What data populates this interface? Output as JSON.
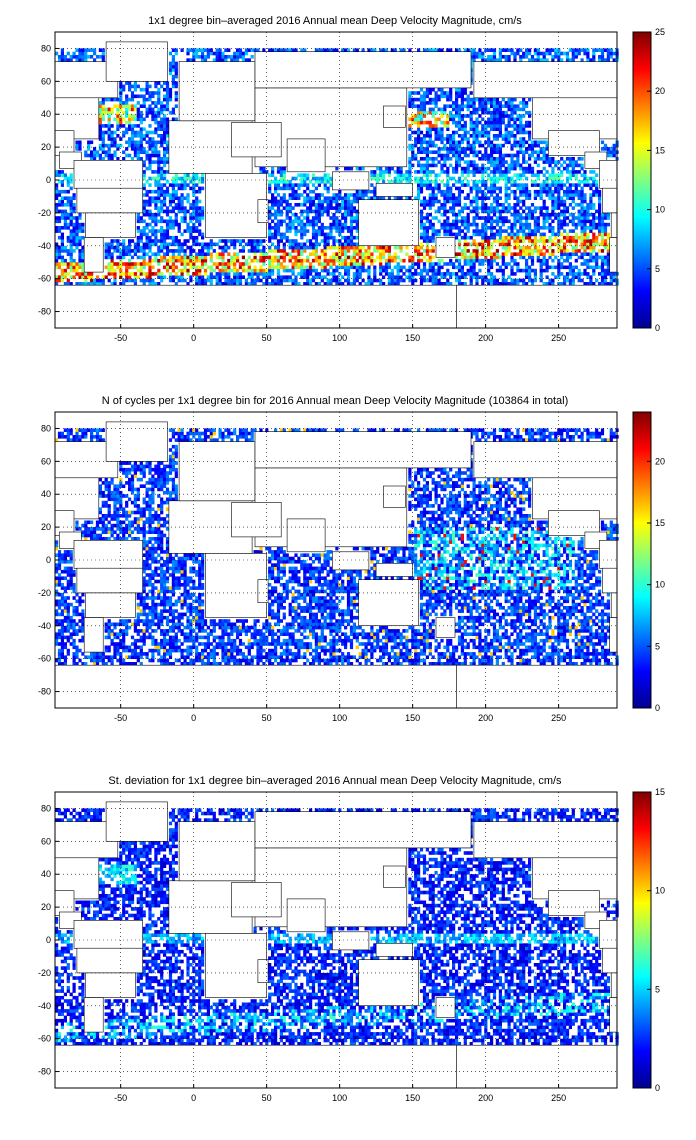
{
  "figure": {
    "panels": [
      {
        "id": "mean",
        "title": "1x1 degree bin–averaged 2016 Annual mean Deep Velocity Magnitude, cm/s",
        "colorbar": {
          "min": 0,
          "max": 25,
          "ticks": [
            0,
            5,
            10,
            15,
            20,
            25
          ]
        },
        "pattern": "mean"
      },
      {
        "id": "count",
        "title": "N of cycles per 1x1 degree bin for 2016 Annual mean Deep Velocity Magnitude (103864 in total)",
        "colorbar": {
          "min": 0,
          "max": 24,
          "ticks": [
            0,
            5,
            10,
            15,
            20
          ]
        },
        "pattern": "count"
      },
      {
        "id": "std",
        "title": "St. deviation for 1x1 degree bin–averaged 2016 Annual mean Deep Velocity Magnitude, cm/s",
        "colorbar": {
          "min": 0,
          "max": 15,
          "ticks": [
            0,
            5,
            10,
            15
          ]
        },
        "pattern": "std"
      }
    ],
    "axes": {
      "xlim": [
        -95,
        290
      ],
      "ylim": [
        -90,
        90
      ],
      "xticks": [
        -50,
        0,
        50,
        100,
        150,
        200,
        250
      ],
      "yticks": [
        -80,
        -60,
        -40,
        -20,
        0,
        20,
        40,
        60,
        80
      ],
      "grid": true,
      "colormap": "jet"
    }
  }
}
